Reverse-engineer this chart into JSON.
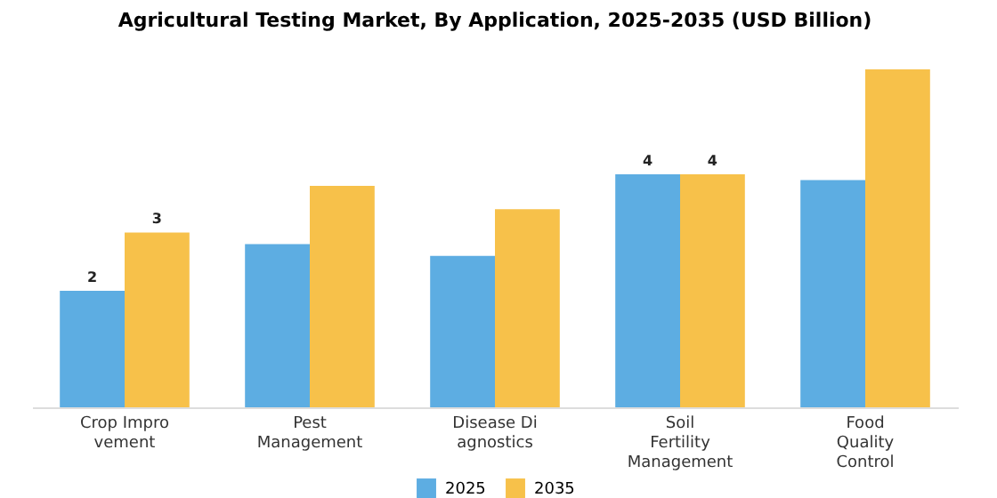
{
  "chart_data": {
    "type": "bar",
    "title": "Agricultural Testing Market, By Application, 2025-2035 (USD Billion)",
    "categories": [
      "Crop Impro\nvement",
      "Pest\nManagement",
      "Disease Di\nagnostics",
      "Soil\nFertility\nManagement",
      "Food\nQuality\nControl"
    ],
    "series": [
      {
        "name": "2025",
        "color": "#5dade2",
        "values": [
          2,
          2.8,
          2.6,
          4,
          3.9
        ],
        "value_labels": [
          "2",
          null,
          null,
          "4",
          null
        ]
      },
      {
        "name": "2035",
        "color": "#f7c14a",
        "values": [
          3,
          3.8,
          3.4,
          4,
          5.8
        ],
        "value_labels": [
          "3",
          null,
          null,
          "4",
          null
        ]
      }
    ],
    "legend": "bottom",
    "grid": false
  }
}
